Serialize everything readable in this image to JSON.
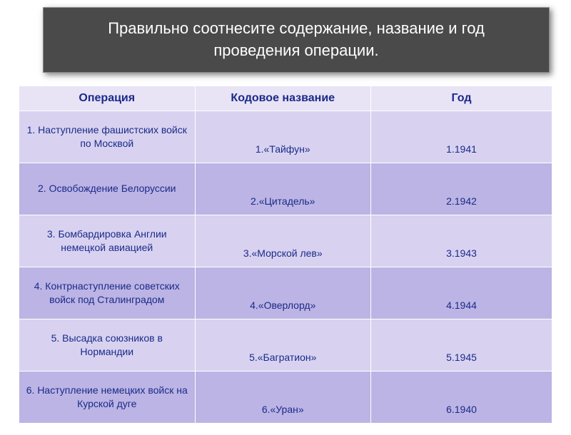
{
  "header": {
    "title": "Правильно соотнесите содержание, название и год проведения операции."
  },
  "table": {
    "columns": [
      "Операция",
      "Кодовое название",
      "Год"
    ],
    "col_widths": [
      "33%",
      "33%",
      "34%"
    ],
    "header_bg": "#e8e3f5",
    "row_odd_bg": "#d8d2f0",
    "row_even_bg": "#bcb4e4",
    "text_color": "#1a2a8a",
    "border_color": "#ffffff",
    "header_fontsize": 16,
    "cell_fontsize": 14,
    "rows": [
      {
        "op": "1. Наступление фашистских войск по Москвой",
        "code": "1.«Тайфун»",
        "year": "1.1941"
      },
      {
        "op": "2. Освобождение Белоруссии",
        "code": "2.«Цитадель»",
        "year": "2.1942"
      },
      {
        "op": "3. Бомбардировка Англии немецкой авиацией",
        "code": "3.«Морской лев»",
        "year": "3.1943"
      },
      {
        "op": "4. Контрнаступление советских войск под Сталинградом",
        "code": "4.«Оверлорд»",
        "year": "4.1944"
      },
      {
        "op": "5. Высадка союзников в Нормандии",
        "code": "5.«Багратион»",
        "year": "5.1945"
      },
      {
        "op": "6. Наступление немецких войск на Курской дуге",
        "code": "6.«Уран»",
        "year": "6.1940"
      }
    ]
  },
  "styling": {
    "header_block_bg": "#4a4a4a",
    "header_text_color": "#ffffff",
    "header_fontsize": 22,
    "page_bg": "#ffffff"
  }
}
